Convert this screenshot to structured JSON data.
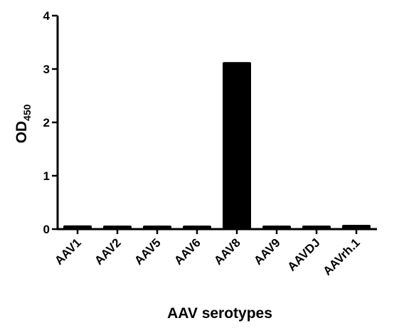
{
  "chart_data": {
    "type": "bar",
    "categories": [
      "AAV1",
      "AAV2",
      "AAV5",
      "AAV6",
      "AAV8",
      "AAV9",
      "AAVDJ",
      "AAVrh.1"
    ],
    "values": [
      0.07,
      0.06,
      0.05,
      0.05,
      3.13,
      0.06,
      0.05,
      0.08
    ],
    "xlabel": "AAV serotypes",
    "ylabel": {
      "main": "OD",
      "sub": "450"
    },
    "ylim": [
      0,
      4
    ],
    "yticks": [
      "0",
      "1",
      "2",
      "3",
      "4"
    ],
    "grid": false,
    "bar_color": "#000000"
  }
}
